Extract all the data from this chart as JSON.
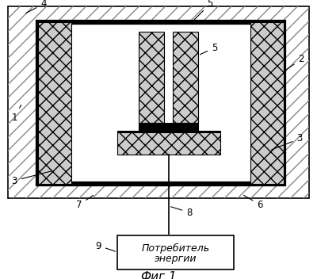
{
  "bg_color": "#ffffff",
  "white": "#ffffff",
  "black": "#000000",
  "gray_light": "#e8e8e8",
  "gray_mid": "#cccccc",
  "fig_width": 4.0,
  "fig_height": 3.52,
  "title": "Фиг.1",
  "box_label_line1": "Потребитель",
  "box_label_line2": "энергии"
}
